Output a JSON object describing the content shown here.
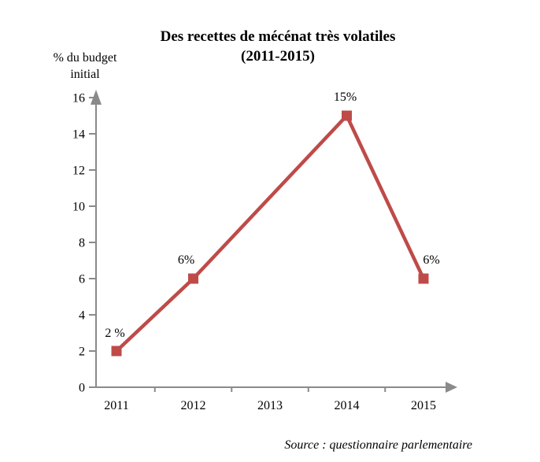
{
  "title": "Des recettes de mécénat très volatiles",
  "subtitle": "(2011-2015)",
  "y_axis_label": {
    "line1": "% du budget",
    "line2": "initial"
  },
  "source": "Source : questionnaire parlementaire",
  "colors": {
    "series": "#BE4B48",
    "axis": "#8A8A8A",
    "text": "#000000",
    "background": "#FFFFFF"
  },
  "chart_data": {
    "type": "line",
    "title": "Des recettes de mécénat très volatiles (2011-2015)",
    "categories": [
      "2011",
      "2012",
      "2013",
      "2014",
      "2015"
    ],
    "values": [
      2,
      6,
      null,
      15,
      6
    ],
    "point_labels": [
      "2 %",
      "6%",
      null,
      "15%",
      "6%"
    ],
    "xlabel": "",
    "ylabel": "% du budget initial",
    "ylim": [
      0,
      16
    ],
    "ytick_step": 2,
    "yticks": [
      0,
      2,
      4,
      6,
      8,
      10,
      12,
      14,
      16
    ],
    "grid": false,
    "legend": "none",
    "marker": "square",
    "line_color": "#BE4B48",
    "source": "Source : questionnaire parlementaire"
  }
}
